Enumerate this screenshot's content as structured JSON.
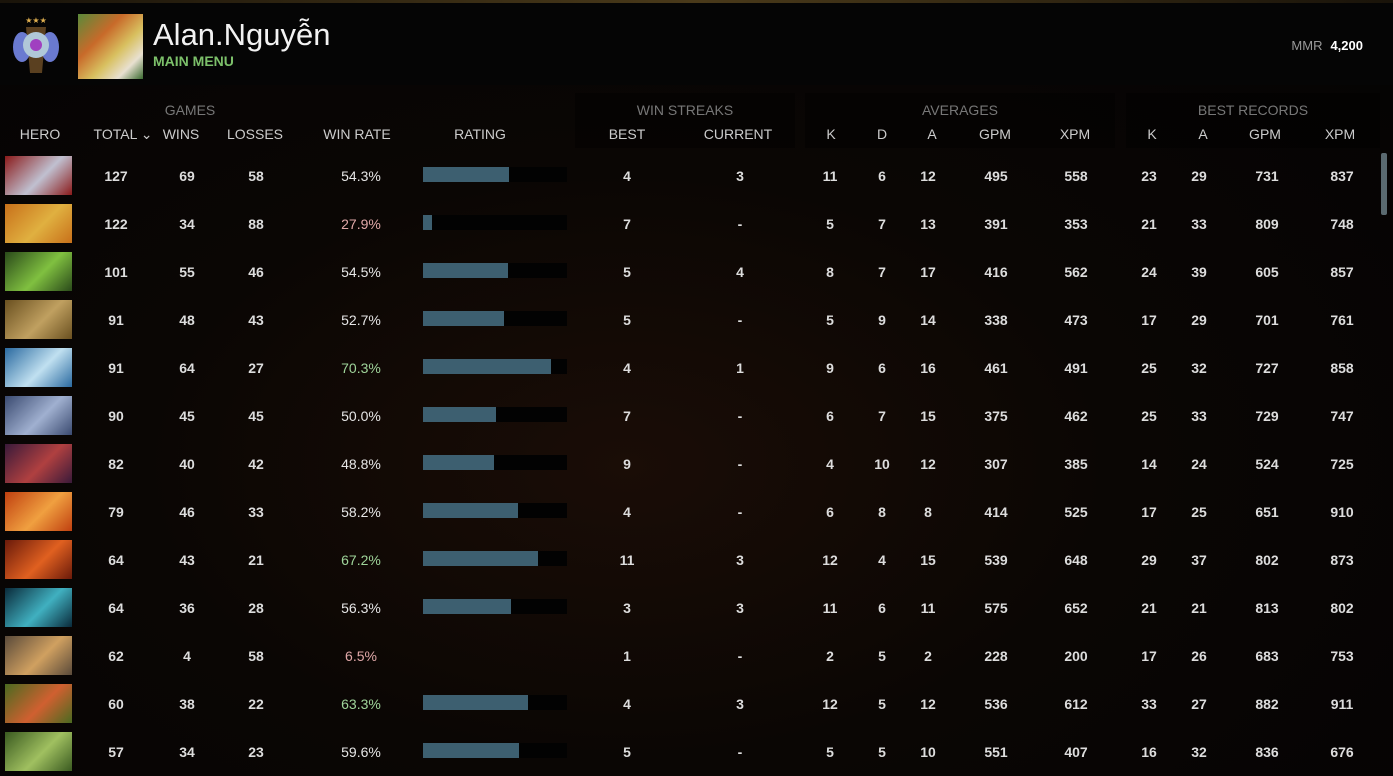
{
  "profile": {
    "name": "Alan.Nguyễn",
    "menu_link": "MAIN MENU",
    "mmr_label": "MMR",
    "mmr_value": "4,200"
  },
  "groups": {
    "games": "GAMES",
    "win_streaks": "WIN STREAKS",
    "averages": "AVERAGES",
    "best_records": "BEST RECORDS"
  },
  "columns": {
    "hero": "HERO",
    "total": "TOTAL ⌄",
    "wins": "WINS",
    "losses": "LOSSES",
    "win_rate": "WIN RATE",
    "rating": "RATING",
    "best": "BEST",
    "current": "CURRENT",
    "k": "K",
    "d": "D",
    "a": "A",
    "gpm": "GPM",
    "xpm": "XPM",
    "bk": "K",
    "ba": "A",
    "bgpm": "GPM",
    "bxpm": "XPM"
  },
  "colors": {
    "win_rate_high": "#9fd49a",
    "win_rate_low": "#e0a8a8",
    "win_rate_mid": "#e6e6e6",
    "bar": "#3d5f70",
    "accent": "#7cc06a"
  },
  "rows": [
    {
      "hero_color": [
        "#8a1a1a",
        "#c0c0d0"
      ],
      "total": "127",
      "wins": "69",
      "losses": "58",
      "win_rate": "54.3%",
      "tone": "mid",
      "rating": 0.6,
      "best": "4",
      "current": "3",
      "k": "11",
      "d": "6",
      "a": "12",
      "gpm": "495",
      "xpm": "558",
      "bk": "23",
      "ba": "29",
      "bgpm": "731",
      "bxpm": "837"
    },
    {
      "hero_color": [
        "#c8701a",
        "#e0b040"
      ],
      "total": "122",
      "wins": "34",
      "losses": "88",
      "win_rate": "27.9%",
      "tone": "low",
      "rating": 0.06,
      "best": "7",
      "current": "-",
      "k": "5",
      "d": "7",
      "a": "13",
      "gpm": "391",
      "xpm": "353",
      "bk": "21",
      "ba": "33",
      "bgpm": "809",
      "bxpm": "748"
    },
    {
      "hero_color": [
        "#2a4a1a",
        "#80c040"
      ],
      "total": "101",
      "wins": "55",
      "losses": "46",
      "win_rate": "54.5%",
      "tone": "mid",
      "rating": 0.59,
      "best": "5",
      "current": "4",
      "k": "8",
      "d": "7",
      "a": "17",
      "gpm": "416",
      "xpm": "562",
      "bk": "24",
      "ba": "39",
      "bgpm": "605",
      "bxpm": "857"
    },
    {
      "hero_color": [
        "#6a5020",
        "#c0a060"
      ],
      "total": "91",
      "wins": "48",
      "losses": "43",
      "win_rate": "52.7%",
      "tone": "mid",
      "rating": 0.56,
      "best": "5",
      "current": "-",
      "k": "5",
      "d": "9",
      "a": "14",
      "gpm": "338",
      "xpm": "473",
      "bk": "17",
      "ba": "29",
      "bgpm": "701",
      "bxpm": "761"
    },
    {
      "hero_color": [
        "#2a6aa0",
        "#c0e0f0"
      ],
      "total": "91",
      "wins": "64",
      "losses": "27",
      "win_rate": "70.3%",
      "tone": "high",
      "rating": 0.89,
      "best": "4",
      "current": "1",
      "k": "9",
      "d": "6",
      "a": "16",
      "gpm": "461",
      "xpm": "491",
      "bk": "25",
      "ba": "32",
      "bgpm": "727",
      "bxpm": "858"
    },
    {
      "hero_color": [
        "#3a4a70",
        "#a0b0d0"
      ],
      "total": "90",
      "wins": "45",
      "losses": "45",
      "win_rate": "50.0%",
      "tone": "mid",
      "rating": 0.51,
      "best": "7",
      "current": "-",
      "k": "6",
      "d": "7",
      "a": "15",
      "gpm": "375",
      "xpm": "462",
      "bk": "25",
      "ba": "33",
      "bgpm": "729",
      "bxpm": "747"
    },
    {
      "hero_color": [
        "#3a1a3a",
        "#b04040"
      ],
      "total": "82",
      "wins": "40",
      "losses": "42",
      "win_rate": "48.8%",
      "tone": "mid",
      "rating": 0.49,
      "best": "9",
      "current": "-",
      "k": "4",
      "d": "10",
      "a": "12",
      "gpm": "307",
      "xpm": "385",
      "bk": "14",
      "ba": "24",
      "bgpm": "524",
      "bxpm": "725"
    },
    {
      "hero_color": [
        "#c04010",
        "#f0a040"
      ],
      "total": "79",
      "wins": "46",
      "losses": "33",
      "win_rate": "58.2%",
      "tone": "mid",
      "rating": 0.66,
      "best": "4",
      "current": "-",
      "k": "6",
      "d": "8",
      "a": "8",
      "gpm": "414",
      "xpm": "525",
      "bk": "17",
      "ba": "25",
      "bgpm": "651",
      "bxpm": "910"
    },
    {
      "hero_color": [
        "#6a1a0a",
        "#e06020"
      ],
      "total": "64",
      "wins": "43",
      "losses": "21",
      "win_rate": "67.2%",
      "tone": "high",
      "rating": 0.8,
      "best": "11",
      "current": "3",
      "k": "12",
      "d": "4",
      "a": "15",
      "gpm": "539",
      "xpm": "648",
      "bk": "29",
      "ba": "37",
      "bgpm": "802",
      "bxpm": "873"
    },
    {
      "hero_color": [
        "#0a2a3a",
        "#40b0c0"
      ],
      "total": "64",
      "wins": "36",
      "losses": "28",
      "win_rate": "56.3%",
      "tone": "mid",
      "rating": 0.61,
      "best": "3",
      "current": "3",
      "k": "11",
      "d": "6",
      "a": "11",
      "gpm": "575",
      "xpm": "652",
      "bk": "21",
      "ba": "21",
      "bgpm": "813",
      "bxpm": "802"
    },
    {
      "hero_color": [
        "#5a4a3a",
        "#d0a060"
      ],
      "total": "62",
      "wins": "4",
      "losses": "58",
      "win_rate": "6.5%",
      "tone": "low",
      "rating": 0,
      "best": "1",
      "current": "-",
      "k": "2",
      "d": "5",
      "a": "2",
      "gpm": "228",
      "xpm": "200",
      "bk": "17",
      "ba": "26",
      "bgpm": "683",
      "bxpm": "753"
    },
    {
      "hero_color": [
        "#4a6a20",
        "#d06030"
      ],
      "total": "60",
      "wins": "38",
      "losses": "22",
      "win_rate": "63.3%",
      "tone": "high",
      "rating": 0.73,
      "best": "4",
      "current": "3",
      "k": "12",
      "d": "5",
      "a": "12",
      "gpm": "536",
      "xpm": "612",
      "bk": "33",
      "ba": "27",
      "bgpm": "882",
      "bxpm": "911"
    },
    {
      "hero_color": [
        "#3a5a20",
        "#a0c060"
      ],
      "total": "57",
      "wins": "34",
      "losses": "23",
      "win_rate": "59.6%",
      "tone": "mid",
      "rating": 0.67,
      "best": "5",
      "current": "-",
      "k": "5",
      "d": "5",
      "a": "10",
      "gpm": "551",
      "xpm": "407",
      "bk": "16",
      "ba": "32",
      "bgpm": "836",
      "bxpm": "676"
    }
  ]
}
